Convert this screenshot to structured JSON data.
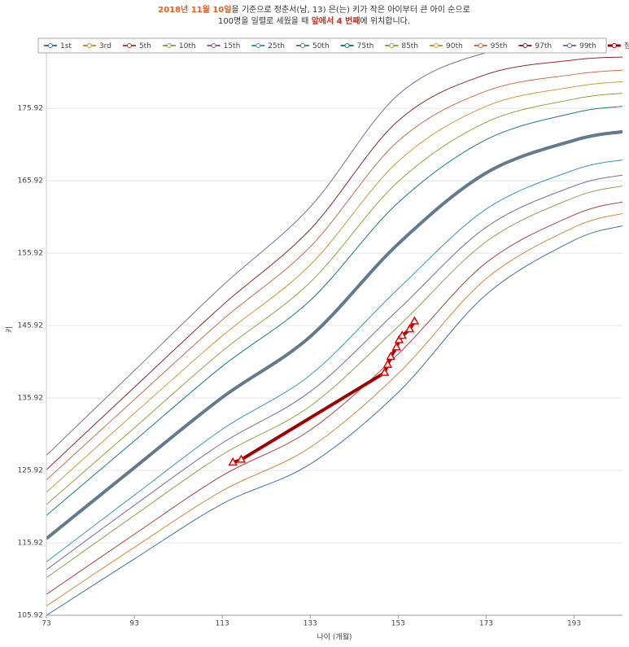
{
  "chart_data": {
    "type": "line",
    "title_parts": [
      "2018년 11월 10일",
      "을 기준으로 정춘서(남, 13) 은(는) 키가 작은 아이부터 큰 아이 순으로",
      "100명을 일렬로 세웠을 때 ",
      "앞에서 4 번째",
      "에 위치합니다."
    ],
    "x_label": "나이 (개월)",
    "y_label": "키",
    "xlim": [
      73,
      204
    ],
    "ylim": [
      105.92,
      184.92
    ],
    "xticks": [
      73,
      93,
      113,
      133,
      153,
      173,
      193
    ],
    "yticks": [
      105.92,
      115.92,
      125.92,
      135.92,
      145.92,
      155.92,
      165.92,
      175.92
    ],
    "grid": true,
    "x": [
      73,
      93,
      113,
      133,
      153,
      173,
      193,
      204
    ],
    "series": [
      {
        "name": "1st",
        "color": "#4572a7",
        "values": [
          105.9,
          113.7,
          121.3,
          126.8,
          136.7,
          150.2,
          157.7,
          159.7
        ]
      },
      {
        "name": "3rd",
        "color": "#d08a3c",
        "values": [
          107.2,
          115.3,
          123.1,
          129.1,
          139.3,
          152.4,
          159.5,
          161.4
        ]
      },
      {
        "name": "5th",
        "color": "#aa4643",
        "values": [
          108.8,
          117.1,
          125.2,
          131.5,
          142.0,
          154.6,
          161.2,
          163.0
        ]
      },
      {
        "name": "10th",
        "color": "#89a54e",
        "values": [
          111.1,
          119.7,
          128.1,
          134.8,
          145.8,
          157.5,
          163.6,
          165.2
        ]
      },
      {
        "name": "15th",
        "color": "#80699b",
        "values": [
          112.2,
          121.1,
          129.7,
          136.8,
          148.1,
          159.5,
          165.2,
          166.7
        ]
      },
      {
        "name": "25th",
        "color": "#3d96ae",
        "values": [
          113.3,
          122.5,
          131.6,
          139.1,
          151.0,
          162.0,
          167.4,
          168.8
        ]
      },
      {
        "name": "50th",
        "color": "#627a8c",
        "values": [
          116.5,
          126.3,
          136.0,
          144.4,
          157.2,
          167.0,
          171.5,
          172.7
        ]
      },
      {
        "name": "75th",
        "color": "#1e7a7a",
        "values": [
          119.7,
          130.0,
          140.3,
          149.4,
          162.9,
          171.6,
          175.3,
          176.2
        ]
      },
      {
        "name": "85th",
        "color": "#8da636",
        "values": [
          121.2,
          131.8,
          142.4,
          151.9,
          165.8,
          174.0,
          177.2,
          178.0
        ]
      },
      {
        "name": "90th",
        "color": "#c89b3a",
        "values": [
          122.9,
          133.8,
          144.5,
          154.3,
          168.6,
          176.2,
          178.9,
          179.6
        ]
      },
      {
        "name": "95th",
        "color": "#c86e4a",
        "values": [
          124.6,
          135.7,
          146.7,
          156.8,
          171.4,
          178.3,
          180.6,
          181.2
        ]
      },
      {
        "name": "97th",
        "color": "#8b2b2b",
        "values": [
          126.0,
          137.4,
          148.7,
          159.2,
          174.2,
          180.6,
          182.6,
          183.0
        ]
      },
      {
        "name": "99th",
        "color": "#7e6e9a",
        "values": [
          128.0,
          139.7,
          151.4,
          162.3,
          177.8,
          183.6,
          184.9,
          185.2
        ]
      }
    ],
    "child": {
      "name": "정춘서",
      "color": "#a00000",
      "x": [
        115.4,
        117.3,
        149.9,
        150.6,
        151.3,
        152.6,
        153.2,
        153.9,
        155.6,
        156.7
      ],
      "values": [
        127.0,
        127.4,
        139.4,
        140.5,
        141.6,
        142.9,
        143.9,
        144.5,
        145.4,
        146.5
      ]
    }
  }
}
